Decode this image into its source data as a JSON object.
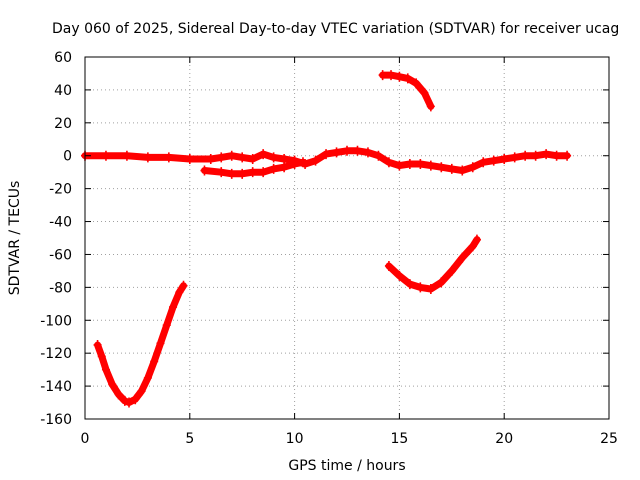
{
  "chart_data": {
    "type": "scatter",
    "title": "Day 060 of 2025, Sidereal Day-to-day VTEC variation (SDTVAR) for receiver ucag",
    "xlabel": "GPS time / hours",
    "ylabel": "SDTVAR / TECUs",
    "xlim": [
      0,
      25
    ],
    "ylim": [
      -160,
      60
    ],
    "xticks": [
      0,
      5,
      10,
      15,
      20,
      25
    ],
    "yticks": [
      -160,
      -140,
      -120,
      -100,
      -80,
      -60,
      -40,
      -20,
      0,
      20,
      40,
      60
    ],
    "grid": true,
    "marker": "plus",
    "color": "#ff0000",
    "series": [
      {
        "name": "arc-main-near-zero",
        "x": [
          0.0,
          1.0,
          2.0,
          3.0,
          4.0,
          5.0,
          6.0,
          6.5,
          7.0,
          7.5,
          8.0,
          8.5,
          9.0,
          9.5,
          10.0,
          10.5,
          11.0,
          11.5,
          12.0,
          12.5,
          13.0,
          13.5,
          14.0,
          14.5,
          15.0,
          15.5,
          16.0,
          16.5,
          17.0,
          17.5,
          18.0,
          18.5,
          19.0,
          19.5,
          20.0,
          20.5,
          21.0,
          21.5,
          22.0,
          22.5,
          23.0
        ],
        "y": [
          0,
          0,
          0,
          -1,
          -1,
          -2,
          -2,
          -1,
          0,
          -1,
          -2,
          1,
          -1,
          -2,
          -3,
          -5,
          -3,
          1,
          2,
          3,
          3,
          2,
          0,
          -4,
          -6,
          -5,
          -5,
          -6,
          -7,
          -8,
          -9,
          -7,
          -4,
          -3,
          -2,
          -1,
          0,
          0,
          1,
          0,
          0
        ]
      },
      {
        "name": "arc-lower-band",
        "x": [
          5.7,
          6.5,
          7.0,
          7.5,
          8.0,
          8.5,
          9.0,
          9.5,
          10.0,
          10.4
        ],
        "y": [
          -9,
          -10,
          -11,
          -11,
          -10,
          -10,
          -8,
          -7,
          -5,
          -4
        ]
      },
      {
        "name": "arc-high",
        "x": [
          14.2,
          14.6,
          15.0,
          15.4,
          15.8,
          16.2,
          16.5
        ],
        "y": [
          49,
          49,
          48,
          47,
          44,
          38,
          30
        ]
      },
      {
        "name": "arc-mid-low",
        "x": [
          14.5,
          15.0,
          15.5,
          16.0,
          16.5,
          17.0,
          17.5,
          18.0,
          18.5,
          18.7
        ],
        "y": [
          -67,
          -73,
          -78,
          -80,
          -81,
          -77,
          -70,
          -62,
          -55,
          -51
        ]
      },
      {
        "name": "arc-deep",
        "x": [
          0.6,
          0.8,
          1.0,
          1.3,
          1.6,
          1.9,
          2.1,
          2.4,
          2.7,
          3.0,
          3.3,
          3.6,
          3.9,
          4.2,
          4.5,
          4.7
        ],
        "y": [
          -115,
          -122,
          -130,
          -139,
          -145,
          -149,
          -150,
          -148,
          -143,
          -135,
          -125,
          -114,
          -103,
          -92,
          -83,
          -79
        ]
      }
    ]
  }
}
